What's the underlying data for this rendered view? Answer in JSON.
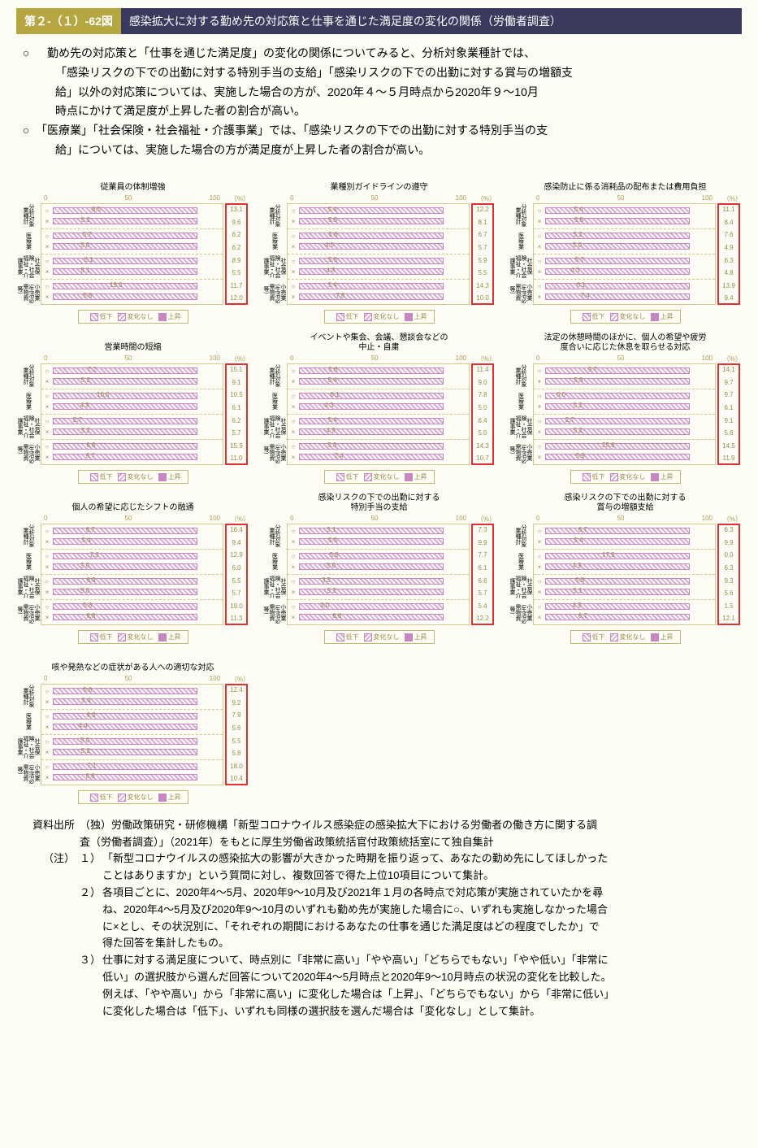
{
  "header": {
    "fig_num": "第２-（１）-62図",
    "fig_title": "感染拡大に対する勤め先の対応策と仕事を通じた満足度の変化の関係（労働者調査）"
  },
  "bullets": [
    {
      "head": "○",
      "lines": [
        "　勤め先の対応策と「仕事を通じた満足度」の変化の関係についてみると、分析対象業種計では、",
        "「感染リスクの下での出勤に対する特別手当の支給」「感染リスクの下での出勤に対する賞与の増額支",
        "給」以外の対応策については、実施した場合の方が、2020年４～５月時点から2020年９～10月",
        "時点にかけて満足度が上昇した者の割合が高い。"
      ]
    },
    {
      "head": "○",
      "lines": [
        "「医療業」「社会保険・社会福祉・介護事業」では、「感染リスクの下での出勤に対する特別手当の支",
        "給」については、実施した場合の方が満足度が上昇した者の割合が高い。"
      ]
    }
  ],
  "axis": {
    "ticks": [
      "0",
      "50",
      "100"
    ],
    "pct_label": "（%）"
  },
  "ylabels": [
    "分析対象\n業種計",
    "医療業",
    "社会保\n険・社会\n福祉・介\n護事業",
    "小売業\n（生活必\n需物資\n等）"
  ],
  "legend": {
    "a": "低下",
    "b": "変化なし",
    "c": "上昇"
  },
  "chart_colors": {
    "bar_fill": "#d9a8d4",
    "bar_border": "#c886c0",
    "chart_border": "#d4c98c",
    "text": "#9a8a4a",
    "highlight_box": "#e03030",
    "background": "#fdfdf5"
  },
  "charts": [
    {
      "title": "従業員の体制増強",
      "rows": [
        {
          "s": "○",
          "v": 8.5,
          "e": "13.1"
        },
        {
          "s": "×",
          "v": 5.2,
          "e": "9.6"
        },
        {
          "s": "○",
          "v": 5.7,
          "e": "6.2"
        },
        {
          "s": "×",
          "v": 5.0,
          "e": "6.2"
        },
        {
          "s": "○",
          "v": 6.1,
          "e": "8.9"
        },
        {
          "s": "×",
          "v": 5.1,
          "e": "5.5"
        },
        {
          "s": "○",
          "v": 19.0,
          "e": "11.7"
        },
        {
          "s": "×",
          "v": 5.8,
          "e": "12.0"
        }
      ]
    },
    {
      "title": "業種別ガイドラインの遵守",
      "rows": [
        {
          "s": "○",
          "v": 5.4,
          "e": "12.2"
        },
        {
          "s": "×",
          "v": 5.5,
          "e": "8.1"
        },
        {
          "s": "○",
          "v": 5.6,
          "e": "6.7"
        },
        {
          "s": "×",
          "v": 4.5,
          "e": "5.7"
        },
        {
          "s": "○",
          "v": 5.5,
          "e": "5.9"
        },
        {
          "s": "×",
          "v": 4.8,
          "e": "5.5"
        },
        {
          "s": "○",
          "v": 5.4,
          "e": "14.3"
        },
        {
          "s": "×",
          "v": 7.8,
          "e": "10.0"
        }
      ]
    },
    {
      "title": "感染防止に係る消耗品の配布または費用負担",
      "rows": [
        {
          "s": "○",
          "v": 5.4,
          "e": "11.1"
        },
        {
          "s": "×",
          "v": 5.5,
          "e": "8.4"
        },
        {
          "s": "○",
          "v": 5.2,
          "e": "7.6"
        },
        {
          "s": "×",
          "v": 5.0,
          "e": "4.9"
        },
        {
          "s": "○",
          "v": 5.7,
          "e": "6.3"
        },
        {
          "s": "×",
          "v": 4.3,
          "e": "4.8"
        },
        {
          "s": "○",
          "v": 6.1,
          "e": "13.9"
        },
        {
          "s": "×",
          "v": 7.4,
          "e": "9.4"
        }
      ]
    },
    {
      "title": "営業時間の短縮",
      "rows": [
        {
          "s": "○",
          "v": 7.2,
          "e": "15.1"
        },
        {
          "s": "×",
          "v": 5.2,
          "e": "9.1"
        },
        {
          "s": "○",
          "v": 10.0,
          "e": "10.5"
        },
        {
          "s": "×",
          "v": 4.9,
          "e": "6.1"
        },
        {
          "s": "○",
          "v": 2.7,
          "e": "6.2"
        },
        {
          "s": "×",
          "v": 5.2,
          "e": "5.7"
        },
        {
          "s": "○",
          "v": 6.8,
          "e": "15.9"
        },
        {
          "s": "×",
          "v": 6.7,
          "e": "11.0"
        }
      ]
    },
    {
      "title": "イベントや集会、会議、懇談会などの\n中止・自粛",
      "rows": [
        {
          "s": "○",
          "v": 5.6,
          "e": "11.4"
        },
        {
          "s": "×",
          "v": 5.4,
          "e": "9.0"
        },
        {
          "s": "○",
          "v": 6.1,
          "e": "7.8"
        },
        {
          "s": "×",
          "v": 4.3,
          "e": "5.0"
        },
        {
          "s": "○",
          "v": 5.4,
          "e": "6.4"
        },
        {
          "s": "×",
          "v": 4.9,
          "e": "5.0"
        },
        {
          "s": "○",
          "v": 5.3,
          "e": "14.3"
        },
        {
          "s": "×",
          "v": 7.4,
          "e": "10.7"
        }
      ]
    },
    {
      "title": "法定の休憩時間のほかに、個人の希望や疲労\n度合いに応じた休息を取らせる対応",
      "rows": [
        {
          "s": "○",
          "v": 9.7,
          "e": "14.1"
        },
        {
          "s": "×",
          "v": 5.3,
          "e": "9.7"
        },
        {
          "s": "○",
          "v": 0.0,
          "e": "9.7"
        },
        {
          "s": "×",
          "v": 5.2,
          "e": "6.1"
        },
        {
          "s": "○",
          "v": 2.7,
          "e": "9.1"
        },
        {
          "s": "×",
          "v": 5.2,
          "e": "5.6"
        },
        {
          "s": "○",
          "v": 25.6,
          "label": "25.6",
          "e": "14.5"
        },
        {
          "s": "×",
          "v": 5.9,
          "e": "11.9"
        }
      ]
    },
    {
      "title": "個人の希望に応じたシフトの融通",
      "rows": [
        {
          "s": "○",
          "v": 6.7,
          "e": "16.4"
        },
        {
          "s": "×",
          "v": 5.4,
          "e": "9.4"
        },
        {
          "s": "○",
          "v": 7.9,
          "e": "12.9"
        },
        {
          "s": "×",
          "v": 5.0,
          "e": "6.0"
        },
        {
          "s": "○",
          "v": 6.9,
          "e": "5.5"
        },
        {
          "s": "×",
          "v": 5.0,
          "e": "5.7"
        },
        {
          "s": "○",
          "v": 5.8,
          "e": "19.0"
        },
        {
          "s": "×",
          "v": 6.8,
          "e": "11.3"
        }
      ]
    },
    {
      "title": "感染リスクの下での出勤に対する\n特別手当の支給",
      "rows": [
        {
          "s": "○",
          "v": 5.1,
          "e": "7.3"
        },
        {
          "s": "×",
          "v": 5.5,
          "e": "9.9"
        },
        {
          "s": "○",
          "v": 5.9,
          "e": "7.7"
        },
        {
          "s": "×",
          "v": 5.0,
          "e": "6.1"
        },
        {
          "s": "○",
          "v": 3.5,
          "e": "6.6"
        },
        {
          "s": "×",
          "v": 5.2,
          "e": "5.7"
        },
        {
          "s": "○",
          "v": 3.0,
          "e": "5.4"
        },
        {
          "s": "×",
          "v": 6.8,
          "e": "12.2"
        }
      ]
    },
    {
      "title": "感染リスクの下での出勤に対する\n賞与の増額支給",
      "rows": [
        {
          "s": "○",
          "v": 6.7,
          "e": "6.3"
        },
        {
          "s": "×",
          "v": 5.4,
          "e": "9.9"
        },
        {
          "s": "○",
          "v": 17.9,
          "e": "0.0"
        },
        {
          "s": "×",
          "v": 4.9,
          "e": "6.3"
        },
        {
          "s": "○",
          "v": 5.8,
          "e": "9.3"
        },
        {
          "s": "×",
          "v": 5.1,
          "e": "5.6"
        },
        {
          "s": "○",
          "v": 4.9,
          "e": "1.5"
        },
        {
          "s": "×",
          "v": 6.7,
          "e": "12.1"
        }
      ]
    },
    {
      "title": "咳や発熱などの症状がある人への適切な対応",
      "rows": [
        {
          "s": "○",
          "v": 5.8,
          "e": "12.4"
        },
        {
          "s": "×",
          "v": 5.4,
          "e": "9.2"
        },
        {
          "s": "○",
          "v": 6.9,
          "e": "7.9"
        },
        {
          "s": "×",
          "v": 4.4,
          "e": "5.6"
        },
        {
          "s": "○",
          "v": 5.0,
          "e": "5.5"
        },
        {
          "s": "×",
          "v": 5.2,
          "e": "5.8"
        },
        {
          "s": "○",
          "v": 7.1,
          "e": "18.0"
        },
        {
          "s": "×",
          "v": 6.6,
          "e": "10.4"
        }
      ]
    }
  ],
  "source": {
    "label": "資料出所",
    "lines": [
      "（独）労働政策研究・研修機構「新型コロナウイルス感染症の感染拡大下における労働者の働き方に関する調",
      "査（労働者調査）」（2021年）をもとに厚生労働省政策統括官付政策統括室にて独自集計"
    ]
  },
  "notes_label": "（注）",
  "notes": [
    {
      "num": "１）",
      "lines": [
        "「新型コロナウイルスの感染拡大の影響が大きかった時期を振り返って、あなたの勤め先にしてほしかった",
        "ことはありますか」という質問に対し、複数回答で得た上位10項目について集計。"
      ]
    },
    {
      "num": "２）",
      "lines": [
        "各項目ごとに、2020年4～5月、2020年9～10月及び2021年１月の各時点で対応策が実施されていたかを尋",
        "ね、2020年4～5月及び2020年9～10月のいずれも勤め先が実施した場合に○、いずれも実施しなかった場合",
        "に×とし、その状況別に、「それぞれの期間におけるあなたの仕事を通じた満足度はどの程度でしたか」で",
        "得た回答を集計したもの。"
      ]
    },
    {
      "num": "３）",
      "lines": [
        "仕事に対する満足度について、時点別に「非常に高い」「やや高い」「どちらでもない」「やや低い」「非常に",
        "低い」の選択肢から選んだ回答について2020年4～5月時点と2020年9～10月時点の状況の変化を比較した。",
        "例えば、「やや高い」から「非常に高い」に変化した場合は「上昇」、「どちらでもない」から「非常に低い」",
        "に変化した場合は「低下」、いずれも同様の選択肢を選んだ場合は「変化なし」として集計。"
      ]
    }
  ]
}
